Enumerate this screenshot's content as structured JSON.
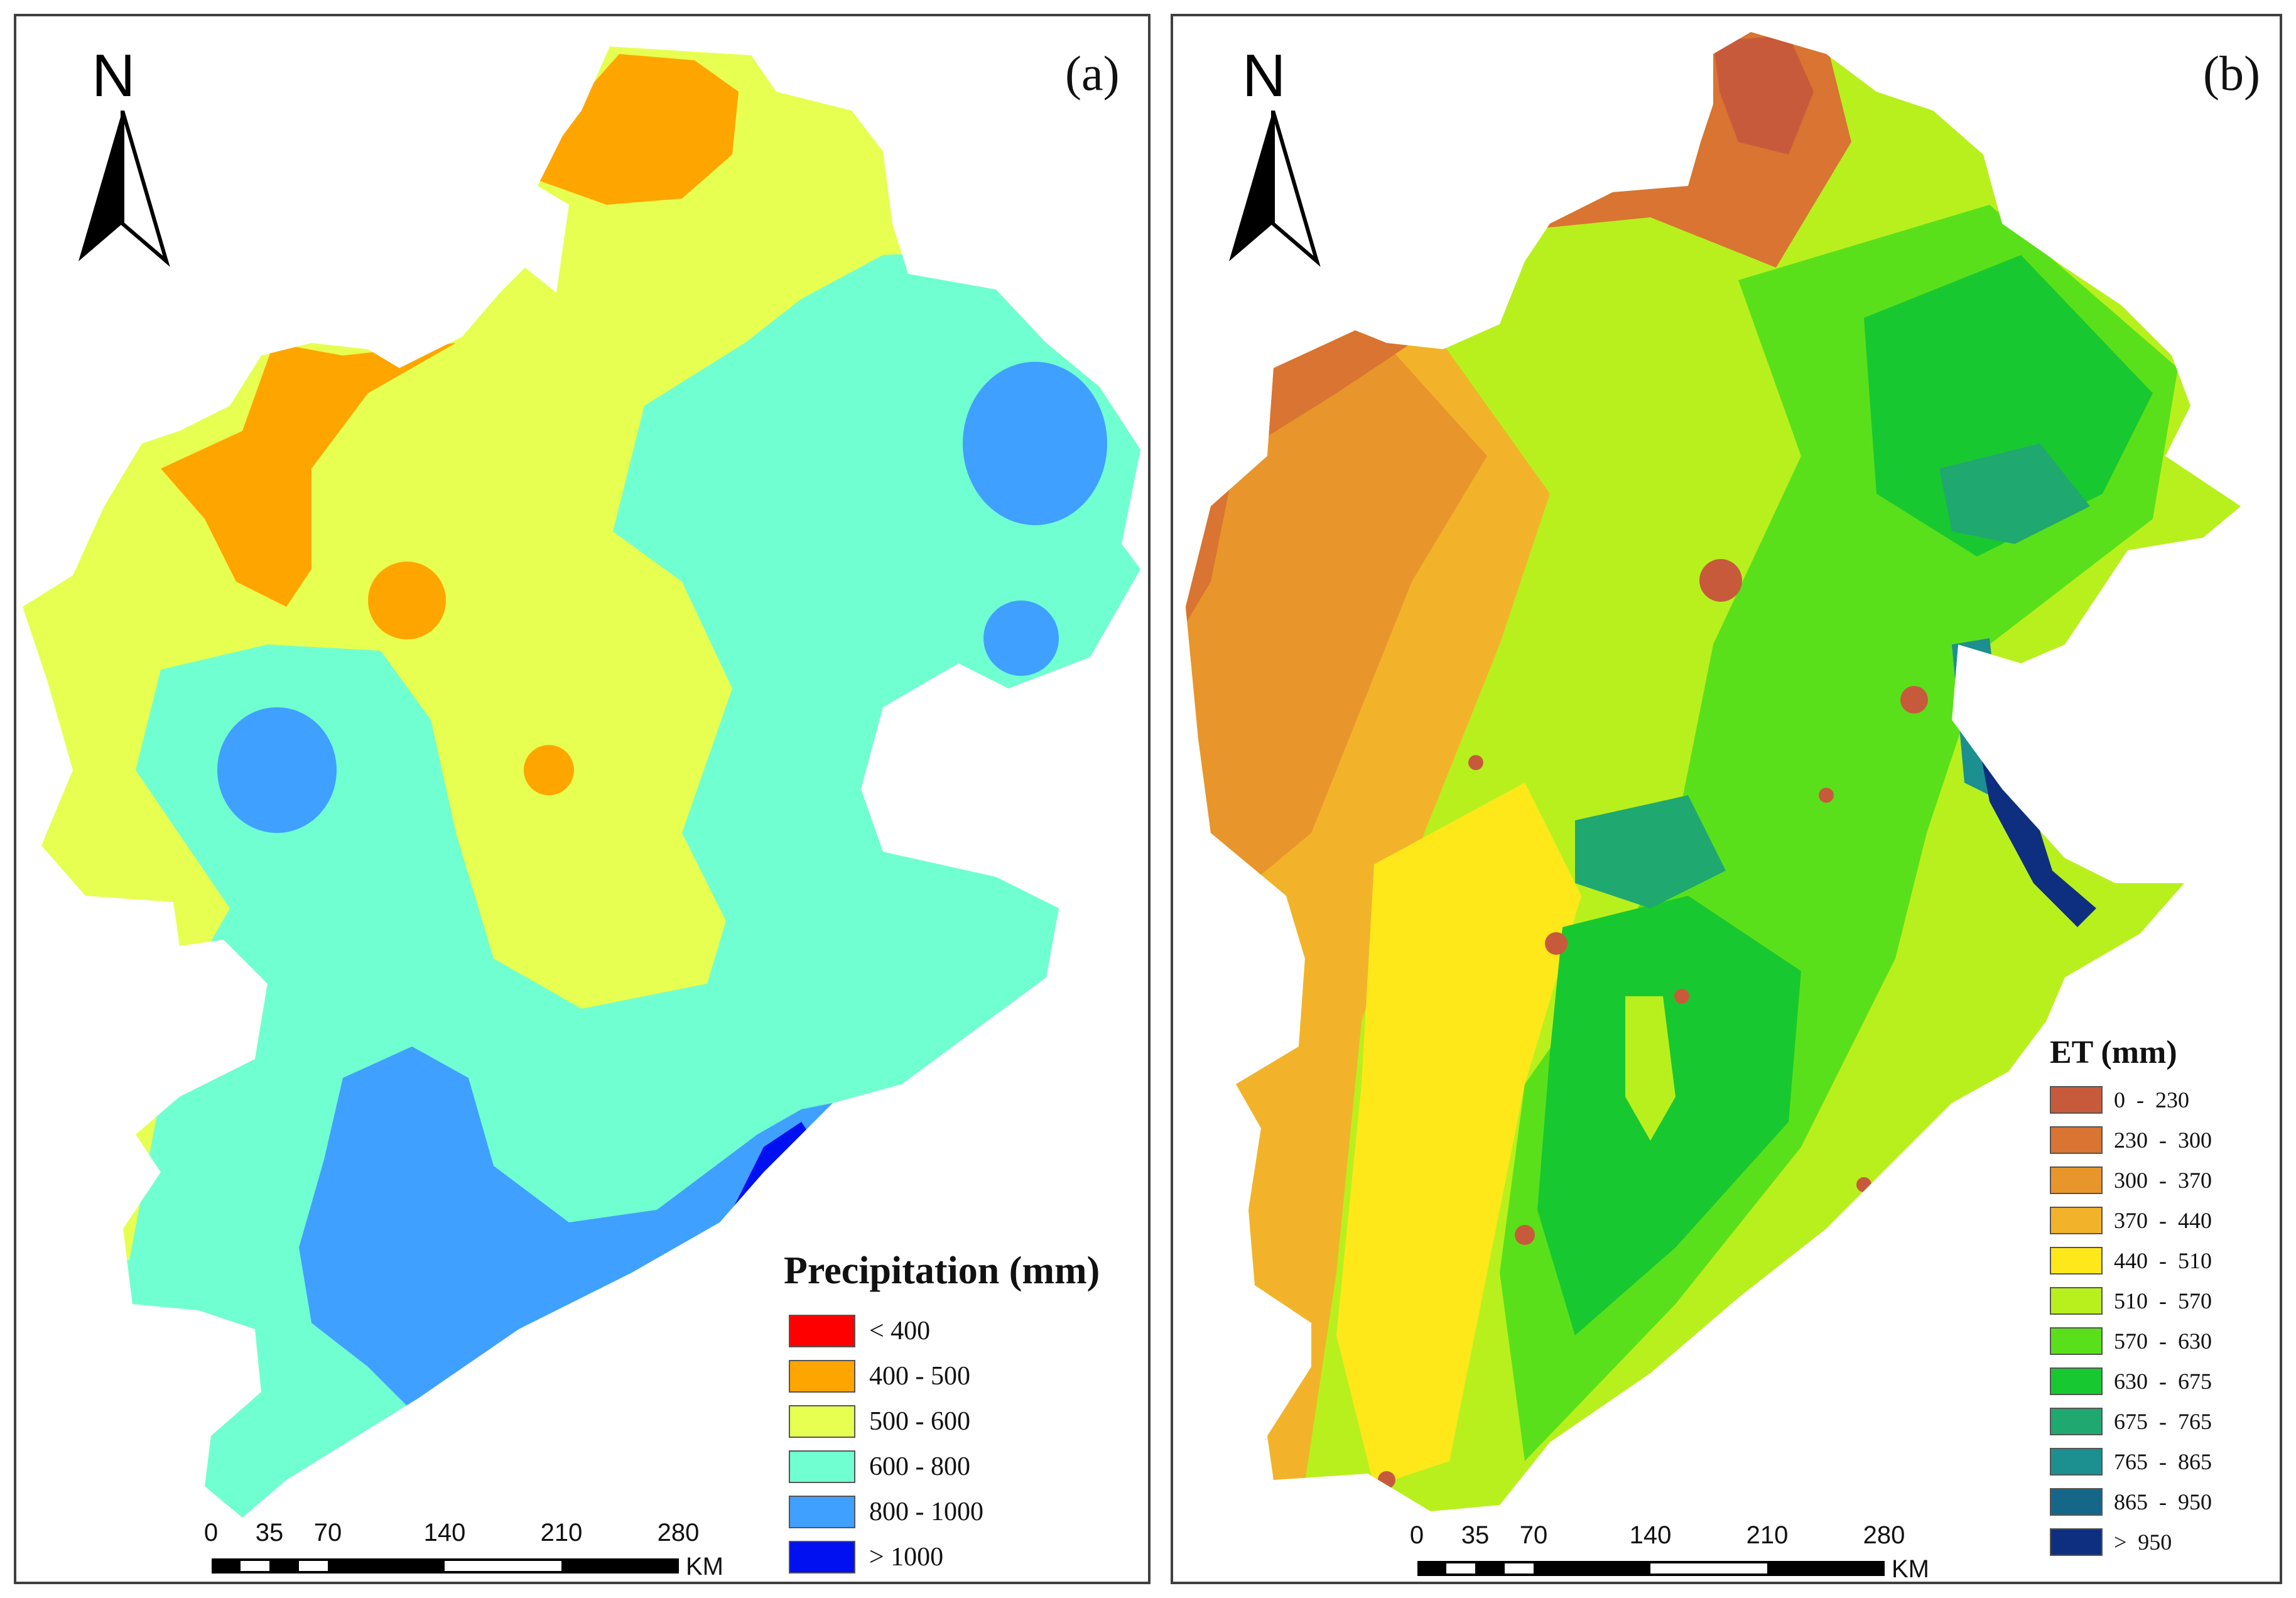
{
  "panels": [
    {
      "id": "a",
      "label": "(a)",
      "north_label": "N",
      "legend": {
        "title": "Precipitation (mm)",
        "items": [
          {
            "label": "< 400",
            "color": "#ff0000"
          },
          {
            "label": "400 - 500",
            "color": "#ffa500"
          },
          {
            "label": "500 - 600",
            "color": "#e6ff50"
          },
          {
            "label": "600 - 800",
            "color": "#70ffd0"
          },
          {
            "label": "800 - 1000",
            "color": "#40a0ff"
          },
          {
            "label": "> 1000",
            "color": "#0010f0"
          }
        ]
      },
      "scale_bar": {
        "ticks": [
          "0",
          "35",
          "70",
          "140",
          "210",
          "280"
        ],
        "unit": "KM"
      }
    },
    {
      "id": "b",
      "label": "(b)",
      "north_label": "N",
      "legend": {
        "title": "ET (mm)",
        "items": [
          {
            "label": "0  -  230",
            "color": "#c85a3c"
          },
          {
            "label": "230  -  300",
            "color": "#d97432"
          },
          {
            "label": "300  -  370",
            "color": "#e8952c"
          },
          {
            "label": "370  -  440",
            "color": "#f2b32a"
          },
          {
            "label": "440  -  510",
            "color": "#ffe81a"
          },
          {
            "label": "510  -  570",
            "color": "#b8f01e"
          },
          {
            "label": "570  -  630",
            "color": "#5ae01a"
          },
          {
            "label": "630  -  675",
            "color": "#18c830"
          },
          {
            "label": "675  -  765",
            "color": "#1fa870"
          },
          {
            "label": "765  -  865",
            "color": "#1c8f90"
          },
          {
            "label": "865  -  950",
            "color": "#15678a"
          },
          {
            "label": ">  950",
            "color": "#0e2f80"
          }
        ]
      },
      "scale_bar": {
        "ticks": [
          "0",
          "35",
          "70",
          "140",
          "210",
          "280"
        ],
        "unit": "KM"
      }
    }
  ]
}
